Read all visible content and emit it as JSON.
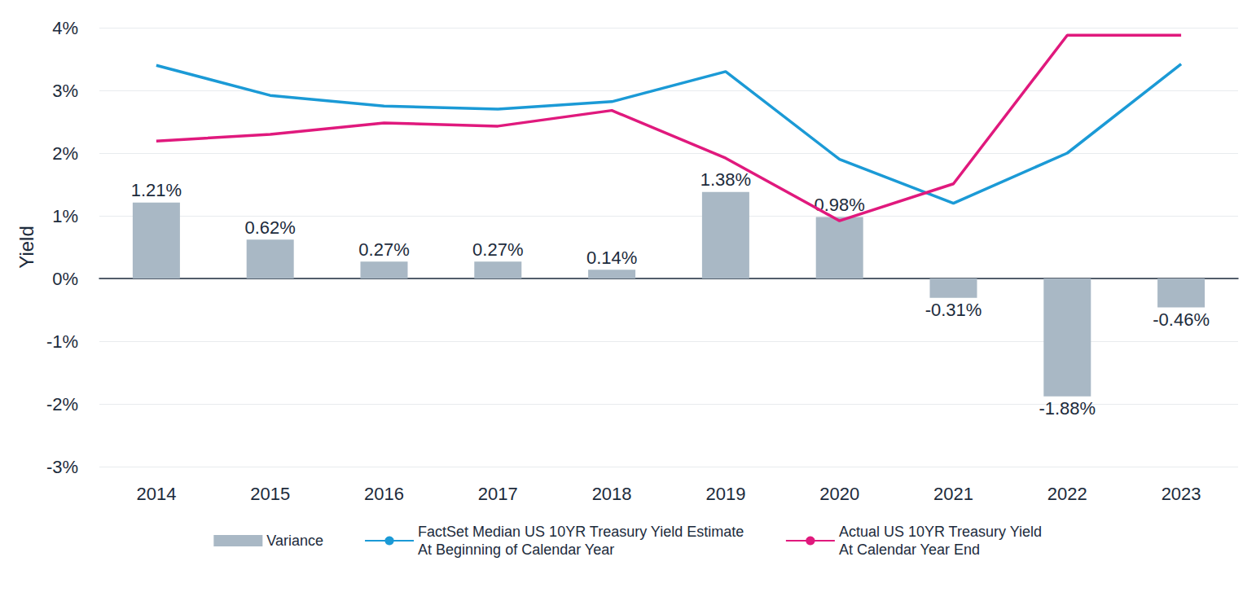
{
  "chart_data": {
    "type": "bar",
    "y_label": "Yield",
    "categories": [
      "2014",
      "2015",
      "2016",
      "2017",
      "2018",
      "2019",
      "2020",
      "2021",
      "2022",
      "2023"
    ],
    "series": [
      {
        "name": "Variance",
        "type": "bar",
        "color": "#a9b8c5",
        "values": [
          1.21,
          0.62,
          0.27,
          0.27,
          0.14,
          1.38,
          0.98,
          -0.31,
          -1.88,
          -0.46
        ],
        "value_labels": [
          "1.21%",
          "0.62%",
          "0.27%",
          "0.27%",
          "0.14%",
          "1.38%",
          "0.98%",
          "-0.31%",
          "-1.88%",
          "-0.46%"
        ],
        "data_labels": true
      },
      {
        "name": "FactSet Median US 10YR Treasury Yield Estimate\nAt Beginning of Calendar Year",
        "type": "line",
        "color": "#1b9ad6",
        "marker": "none",
        "line_style": "solid",
        "values": [
          3.4,
          2.92,
          2.75,
          2.7,
          2.82,
          3.3,
          1.9,
          1.2,
          2.0,
          3.42
        ]
      },
      {
        "name": "Actual US 10YR Treasury Yield\nAt Calendar Year End",
        "type": "line",
        "color": "#e0197d",
        "marker": "none",
        "line_style": "solid",
        "values": [
          2.19,
          2.3,
          2.48,
          2.43,
          2.68,
          1.92,
          0.92,
          1.51,
          3.88,
          3.88
        ]
      }
    ],
    "ylim": [
      -3,
      4
    ],
    "yticks": [
      {
        "value": -3,
        "label": "-3%"
      },
      {
        "value": -2,
        "label": "-2%"
      },
      {
        "value": -1,
        "label": "-1%"
      },
      {
        "value": 0,
        "label": "0%"
      },
      {
        "value": 1,
        "label": "1%"
      },
      {
        "value": 2,
        "label": "2%"
      },
      {
        "value": 3,
        "label": "3%"
      },
      {
        "value": 4,
        "label": "4%"
      }
    ],
    "grid": true,
    "legend": "bottom"
  }
}
